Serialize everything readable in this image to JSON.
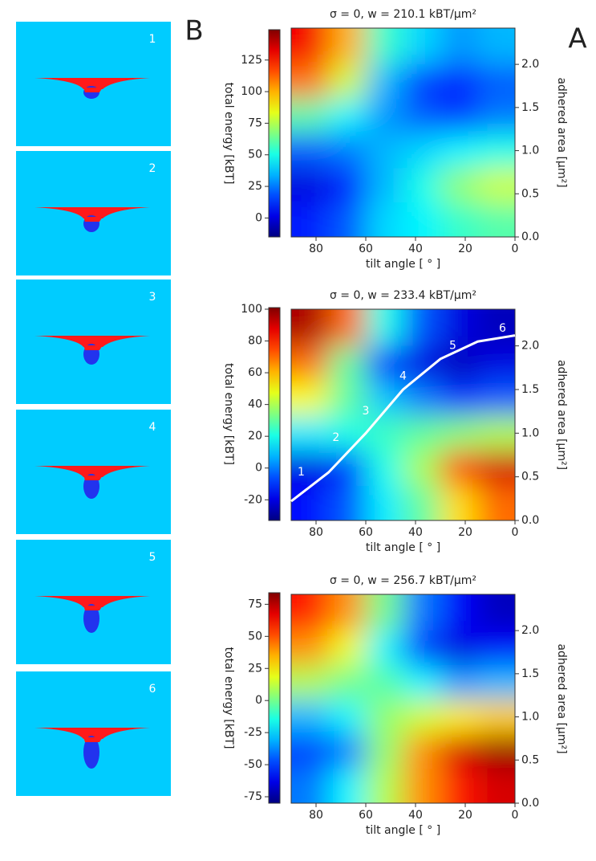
{
  "chart_data": [
    {
      "type": "heatmap",
      "title": "σ = 0, w = 210.1 kBT/μm²",
      "xlabel": "tilt angle [ ° ]",
      "ylabel": "adhered area [μm²]",
      "colorbar_label": "total energy [kBT]",
      "x": [
        7.5,
        22.5,
        37.5,
        52.5,
        67.5,
        82.5
      ],
      "y": [
        0.2,
        0.6,
        1.0,
        1.4,
        1.8,
        2.2
      ],
      "z": [
        [
          60,
          55,
          45,
          40,
          20,
          10
        ],
        [
          80,
          70,
          50,
          35,
          10,
          0
        ],
        [
          50,
          45,
          40,
          35,
          25,
          20
        ],
        [
          25,
          15,
          20,
          30,
          45,
          60
        ],
        [
          20,
          10,
          15,
          35,
          80,
          110
        ],
        [
          35,
          30,
          40,
          55,
          100,
          130
        ]
      ],
      "xlim": [
        90,
        0
      ],
      "xticks": [
        80,
        60,
        40,
        20,
        0
      ],
      "ylim": [
        0,
        2.42
      ],
      "yticks": [
        {
          "value": 0,
          "label": "0.0"
        },
        0.5,
        {
          "value": 1,
          "label": "1.0"
        },
        1.5,
        {
          "value": 2,
          "label": "2.0"
        }
      ],
      "zlim": [
        -15,
        149
      ],
      "zticks": [
        0,
        25,
        50,
        75,
        100,
        125
      ],
      "colormap": "jet"
    },
    {
      "type": "heatmap",
      "title": "σ = 0, w = 233.4 kBT/μm²",
      "xlabel": "tilt angle [ ° ]",
      "ylabel": "adhered area [μm²]",
      "colorbar_label": "total energy [kBT]",
      "x": [
        7.5,
        22.5,
        37.5,
        52.5,
        67.5,
        82.5
      ],
      "y": [
        0.2,
        0.6,
        1.0,
        1.4,
        1.8,
        2.2
      ],
      "z": [
        [
          70,
          55,
          30,
          15,
          -5,
          -15
        ],
        [
          90,
          75,
          40,
          20,
          -10,
          -20
        ],
        [
          40,
          35,
          30,
          25,
          20,
          15
        ],
        [
          -5,
          -10,
          0,
          10,
          30,
          50
        ],
        [
          -20,
          -25,
          -20,
          -10,
          30,
          70
        ],
        [
          -25,
          -20,
          -5,
          20,
          70,
          95
        ]
      ],
      "xlim": [
        90,
        0
      ],
      "xticks": [
        80,
        60,
        40,
        20,
        0
      ],
      "ylim": [
        0,
        2.42
      ],
      "yticks": [
        {
          "value": 0,
          "label": "0.0"
        },
        0.5,
        {
          "value": 1,
          "label": "1.0"
        },
        1.5,
        {
          "value": 2,
          "label": "2.0"
        }
      ],
      "zlim": [
        -33,
        101
      ],
      "zticks": [
        -20,
        0,
        20,
        40,
        60,
        80,
        100
      ],
      "colormap": "jet",
      "path": {
        "color": "#ffffff",
        "x": [
          90,
          75,
          60,
          45,
          30,
          15,
          0
        ],
        "y": [
          0.22,
          0.55,
          1.0,
          1.5,
          1.85,
          2.05,
          2.12
        ]
      },
      "annotations": {
        "text": [
          "1",
          "2",
          "3",
          "4",
          "5",
          "6"
        ],
        "x": [
          86,
          72,
          60,
          45,
          25,
          5
        ],
        "y": [
          0.55,
          0.95,
          1.25,
          1.65,
          2.0,
          2.2
        ]
      }
    },
    {
      "type": "heatmap",
      "title": "σ = 0, w = 256.7 kBT/μm²",
      "xlabel": "tilt angle [ ° ]",
      "ylabel": "adhered area [μm²]",
      "colorbar_label": "total energy [kBT]",
      "x": [
        7.5,
        22.5,
        37.5,
        52.5,
        67.5,
        82.5
      ],
      "y": [
        0.2,
        0.6,
        1.0,
        1.4,
        1.8,
        2.2
      ],
      "z": [
        [
          70,
          60,
          40,
          10,
          -20,
          -40
        ],
        [
          80,
          70,
          40,
          5,
          -40,
          -50
        ],
        [
          30,
          25,
          15,
          5,
          -20,
          -30
        ],
        [
          -30,
          -35,
          -20,
          -5,
          0,
          10
        ],
        [
          -60,
          -65,
          -50,
          -20,
          20,
          40
        ],
        [
          -70,
          -60,
          -40,
          0,
          40,
          60
        ]
      ],
      "xlim": [
        90,
        0
      ],
      "xticks": [
        80,
        60,
        40,
        20,
        0
      ],
      "ylim": [
        0,
        2.42
      ],
      "yticks": [
        {
          "value": 0,
          "label": "0.0"
        },
        0.5,
        {
          "value": 1,
          "label": "1.0"
        },
        1.5,
        {
          "value": 2,
          "label": "2.0"
        }
      ],
      "zlim": [
        -80,
        84
      ],
      "zticks": [
        -75,
        -50,
        -25,
        0,
        25,
        50,
        75
      ],
      "colormap": "jet"
    }
  ],
  "panel_labels": [
    "A",
    "B"
  ],
  "snapshots": {
    "labels": [
      "1",
      "2",
      "3",
      "4",
      "5",
      "6"
    ]
  }
}
